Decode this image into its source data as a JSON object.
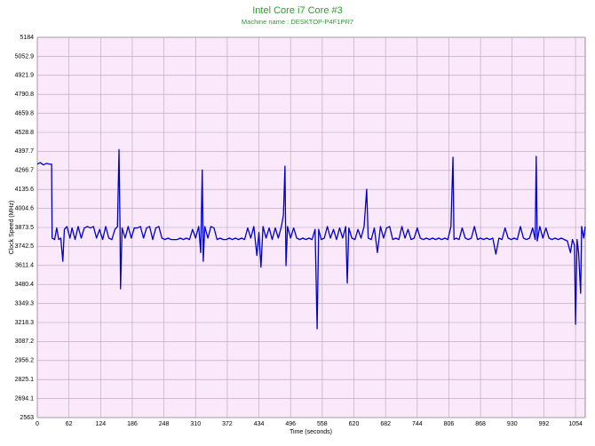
{
  "chart_data": {
    "type": "line",
    "title": "Intel Core i7 Core #3",
    "subtitle": "Machine name : DESKTOP-P4F1PR7",
    "xlabel": "Time (seconds)",
    "ylabel": "Clock Speed (MHz)",
    "xlim": [
      0,
      1073
    ],
    "ylim": [
      2563,
      5184
    ],
    "xticks": [
      0,
      62,
      124,
      186,
      248,
      310,
      372,
      434,
      496,
      558,
      620,
      682,
      744,
      806,
      868,
      930,
      992,
      1054
    ],
    "yticks": [
      2563,
      2694.1,
      2825.1,
      2956.2,
      3087.2,
      3218.3,
      3349.3,
      3480.4,
      3611.4,
      3742.5,
      3873.5,
      4004.6,
      4135.6,
      4266.7,
      4397.7,
      4528.8,
      4659.8,
      4790.8,
      4921.9,
      5052.9,
      5184
    ],
    "grid": true,
    "x": [
      0,
      6,
      12,
      18,
      24,
      28,
      29,
      34,
      38,
      42,
      46,
      50,
      53,
      58,
      64,
      68,
      74,
      80,
      86,
      92,
      98,
      104,
      110,
      116,
      122,
      128,
      134,
      140,
      146,
      152,
      157,
      160,
      162,
      163,
      166,
      172,
      178,
      184,
      190,
      196,
      202,
      208,
      214,
      220,
      226,
      232,
      238,
      244,
      250,
      256,
      262,
      268,
      274,
      280,
      286,
      292,
      298,
      304,
      310,
      316,
      320,
      323,
      325,
      328,
      334,
      340,
      346,
      352,
      358,
      364,
      370,
      376,
      382,
      388,
      394,
      400,
      406,
      412,
      418,
      424,
      430,
      434,
      438,
      442,
      448,
      454,
      460,
      466,
      472,
      478,
      482,
      485,
      487,
      490,
      496,
      502,
      508,
      514,
      520,
      526,
      532,
      538,
      544,
      548,
      551,
      556,
      562,
      568,
      574,
      580,
      586,
      592,
      598,
      604,
      607,
      610,
      616,
      622,
      628,
      634,
      640,
      645,
      648,
      654,
      660,
      666,
      672,
      678,
      684,
      690,
      696,
      702,
      708,
      714,
      720,
      726,
      732,
      738,
      744,
      750,
      756,
      762,
      768,
      774,
      780,
      786,
      792,
      798,
      804,
      810,
      814,
      816,
      820,
      826,
      832,
      838,
      844,
      850,
      856,
      862,
      868,
      874,
      880,
      886,
      892,
      898,
      904,
      910,
      916,
      922,
      928,
      934,
      940,
      946,
      952,
      958,
      964,
      970,
      975,
      977,
      979,
      984,
      990,
      996,
      1002,
      1008,
      1014,
      1020,
      1026,
      1032,
      1038,
      1044,
      1048,
      1052,
      1054,
      1057,
      1060,
      1064,
      1066,
      1070,
      1073
    ],
    "series": [
      {
        "color": "#0000cc",
        "values": [
          4310,
          4320,
          4305,
          4315,
          4310,
          4310,
          3800,
          3790,
          3870,
          3790,
          3800,
          3640,
          3860,
          3880,
          3800,
          3870,
          3790,
          3880,
          3800,
          3870,
          3880,
          3870,
          3880,
          3800,
          3860,
          3790,
          3880,
          3800,
          3790,
          3860,
          3880,
          4410,
          3880,
          3450,
          3870,
          3800,
          3880,
          3800,
          3870,
          3870,
          3880,
          3800,
          3870,
          3880,
          3790,
          3870,
          3880,
          3800,
          3790,
          3800,
          3790,
          3790,
          3790,
          3800,
          3790,
          3800,
          3790,
          3860,
          3800,
          3880,
          3700,
          4270,
          3640,
          3880,
          3800,
          3880,
          3870,
          3790,
          3800,
          3790,
          3790,
          3800,
          3790,
          3800,
          3790,
          3800,
          3790,
          3870,
          3800,
          3880,
          3680,
          3840,
          3600,
          3880,
          3800,
          3870,
          3790,
          3870,
          3800,
          3880,
          3960,
          4296,
          3610,
          3880,
          3800,
          3870,
          3800,
          3790,
          3800,
          3790,
          3800,
          3790,
          3860,
          3175,
          3860,
          3790,
          3800,
          3880,
          3800,
          3860,
          3790,
          3870,
          3800,
          3880,
          3490,
          3870,
          3800,
          3790,
          3860,
          3800,
          3880,
          4137,
          3800,
          3790,
          3870,
          3700,
          3880,
          3800,
          3870,
          3880,
          3790,
          3800,
          3790,
          3880,
          3800,
          3860,
          3790,
          3800,
          3870,
          3800,
          3790,
          3800,
          3790,
          3800,
          3790,
          3800,
          3790,
          3800,
          3790,
          3880,
          4357,
          3790,
          3800,
          3790,
          3870,
          3800,
          3790,
          3800,
          3880,
          3790,
          3800,
          3790,
          3800,
          3790,
          3800,
          3690,
          3800,
          3790,
          3870,
          3800,
          3790,
          3800,
          3790,
          3880,
          3800,
          3790,
          3800,
          3870,
          3790,
          4363,
          3780,
          3880,
          3800,
          3870,
          3800,
          3790,
          3800,
          3790,
          3800,
          3790,
          3780,
          3700,
          3790,
          3750,
          3206,
          3790,
          3700,
          3420,
          3880,
          3800,
          3880
        ]
      }
    ]
  }
}
